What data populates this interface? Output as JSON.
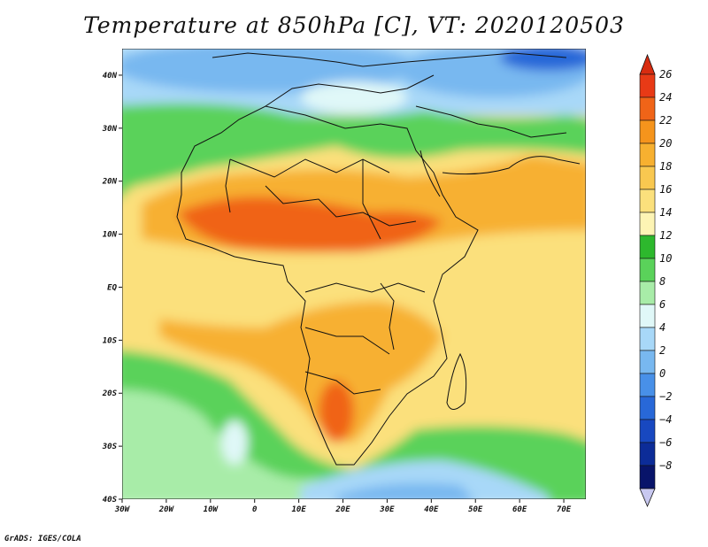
{
  "title": "Temperature at 850hPa [C], VT: 2020120503",
  "credit": "GrADS: IGES/COLA",
  "map": {
    "lon_range": [
      -30,
      75
    ],
    "lat_range": [
      -40,
      45
    ],
    "lon_ticks": [
      "30W",
      "20W",
      "10W",
      "0",
      "10E",
      "20E",
      "30E",
      "40E",
      "50E",
      "60E",
      "70E"
    ],
    "lat_ticks": [
      "40N",
      "30N",
      "20N",
      "10N",
      "EQ",
      "10S",
      "20S",
      "30S",
      "40S"
    ],
    "field": "Temperature at 850hPa",
    "units": "C"
  },
  "colorbar": {
    "labels": [
      "26",
      "24",
      "22",
      "20",
      "18",
      "16",
      "14",
      "12",
      "10",
      "8",
      "6",
      "4",
      "2",
      "0",
      "−2",
      "−4",
      "−6",
      "−8"
    ],
    "colors": [
      "#e83a16",
      "#f06418",
      "#f5941c",
      "#f7b030",
      "#f9c850",
      "#fbe07c",
      "#fdf4b4",
      "#2db82d",
      "#5ad25a",
      "#a8eca8",
      "#e0f8f8",
      "#a8d8f8",
      "#78b8f0",
      "#4890e8",
      "#2868d8",
      "#1848c0",
      "#0c2c98",
      "#08146a"
    ],
    "top_arrow_color": "#d82c10",
    "bottom_arrow_color": "#c8c8f0"
  }
}
